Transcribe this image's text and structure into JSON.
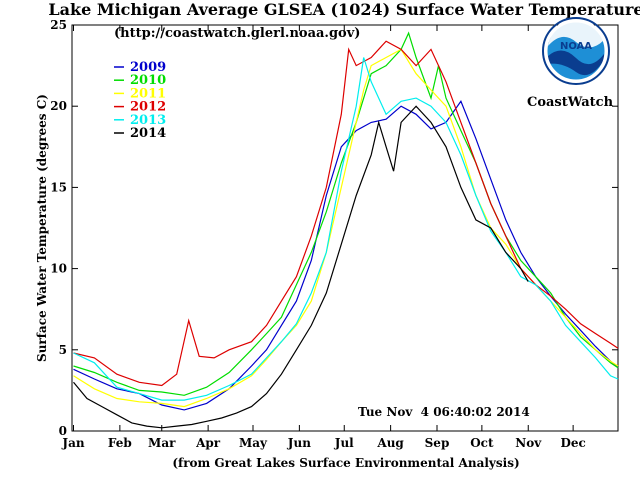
{
  "logo": {
    "text": "NOAA",
    "caption": "CoastWatch"
  },
  "chart_data": {
    "type": "line",
    "title": "Lake Michigan Average GLSEA (1024) Surface Water Temperature",
    "subtitle": "(http://coastwatch.glerl.noaa.gov)",
    "xlabel": "(from Great Lakes Surface Environmental Analysis)",
    "ylabel": "Surface Water Temperature (degrees C)",
    "timestamp": "Tue Nov  4 06:40:02 2014",
    "xlim": [
      0,
      365
    ],
    "ylim": [
      0,
      25
    ],
    "yticks": [
      0,
      5,
      10,
      15,
      20,
      25
    ],
    "months": [
      {
        "label": "Jan",
        "day": 1
      },
      {
        "label": "Feb",
        "day": 32
      },
      {
        "label": "Mar",
        "day": 60
      },
      {
        "label": "Apr",
        "day": 91
      },
      {
        "label": "May",
        "day": 121
      },
      {
        "label": "Jun",
        "day": 152
      },
      {
        "label": "Jul",
        "day": 182
      },
      {
        "label": "Aug",
        "day": 213
      },
      {
        "label": "Sep",
        "day": 244
      },
      {
        "label": "Oct",
        "day": 274
      },
      {
        "label": "Nov",
        "day": 305
      },
      {
        "label": "Dec",
        "day": 335
      }
    ],
    "series": [
      {
        "name": "2009",
        "color": "#0000cc",
        "x": [
          1,
          15,
          30,
          45,
          60,
          75,
          90,
          105,
          120,
          130,
          140,
          150,
          160,
          170,
          180,
          190,
          200,
          210,
          220,
          230,
          240,
          250,
          260,
          270,
          280,
          290,
          300,
          310,
          320,
          330,
          340,
          350,
          360,
          365
        ],
        "y": [
          3.8,
          3.2,
          2.6,
          2.3,
          1.6,
          1.3,
          1.7,
          2.6,
          4.0,
          5.0,
          6.5,
          8.0,
          10.5,
          14.5,
          17.5,
          18.5,
          19.0,
          19.2,
          20.0,
          19.5,
          18.6,
          19.0,
          20.3,
          18.0,
          15.5,
          13.0,
          11.0,
          9.5,
          8.3,
          7.2,
          6.2,
          5.2,
          4.3,
          3.9
        ]
      },
      {
        "name": "2010",
        "color": "#00dd00",
        "x": [
          1,
          15,
          30,
          45,
          60,
          75,
          90,
          105,
          120,
          130,
          140,
          150,
          160,
          170,
          180,
          190,
          200,
          210,
          220,
          225,
          230,
          240,
          245,
          250,
          260,
          270,
          280,
          290,
          300,
          310,
          320,
          330,
          340,
          350,
          360,
          365
        ],
        "y": [
          4.0,
          3.6,
          3.0,
          2.5,
          2.4,
          2.2,
          2.7,
          3.6,
          5.0,
          6.0,
          7.0,
          9.0,
          11.0,
          13.5,
          16.5,
          19.0,
          22.0,
          22.5,
          23.5,
          24.5,
          23.0,
          20.5,
          22.5,
          20.5,
          18.5,
          16.5,
          14.0,
          12.0,
          10.5,
          9.5,
          8.5,
          7.0,
          5.8,
          5.0,
          4.2,
          3.9
        ]
      },
      {
        "name": "2011",
        "color": "#ffff00",
        "x": [
          1,
          15,
          30,
          45,
          60,
          75,
          90,
          105,
          120,
          130,
          140,
          150,
          160,
          170,
          180,
          190,
          195,
          200,
          210,
          220,
          230,
          240,
          250,
          260,
          270,
          280,
          290,
          300,
          310,
          320,
          330,
          340,
          350,
          360,
          365
        ],
        "y": [
          3.4,
          2.6,
          2.0,
          1.8,
          1.7,
          1.5,
          2.0,
          2.6,
          3.4,
          4.4,
          5.5,
          6.5,
          8.0,
          11.0,
          15.0,
          19.0,
          21.0,
          22.5,
          23.0,
          23.5,
          22.0,
          21.0,
          20.0,
          17.5,
          14.5,
          12.5,
          11.5,
          10.0,
          9.0,
          8.0,
          7.0,
          6.0,
          5.0,
          4.3,
          4.0
        ]
      },
      {
        "name": "2012",
        "color": "#dd0000",
        "x": [
          1,
          15,
          30,
          45,
          60,
          70,
          78,
          85,
          95,
          105,
          120,
          130,
          140,
          150,
          160,
          170,
          180,
          185,
          190,
          200,
          210,
          220,
          230,
          240,
          250,
          260,
          270,
          280,
          290,
          300,
          310,
          320,
          330,
          340,
          350,
          360,
          365
        ],
        "y": [
          4.8,
          4.5,
          3.5,
          3.0,
          2.8,
          3.5,
          6.8,
          4.6,
          4.5,
          5.0,
          5.5,
          6.5,
          8.0,
          9.5,
          12.0,
          15.0,
          19.5,
          23.5,
          22.5,
          23.0,
          24.0,
          23.5,
          22.5,
          23.5,
          21.5,
          19.0,
          16.5,
          14.0,
          12.0,
          10.0,
          9.0,
          8.3,
          7.5,
          6.6,
          6.0,
          5.4,
          5.1
        ]
      },
      {
        "name": "2013",
        "color": "#00eeee",
        "x": [
          1,
          15,
          30,
          45,
          60,
          75,
          90,
          105,
          120,
          130,
          140,
          150,
          160,
          170,
          180,
          190,
          195,
          200,
          210,
          220,
          230,
          240,
          250,
          260,
          270,
          280,
          290,
          300,
          310,
          320,
          330,
          340,
          350,
          360,
          365
        ],
        "y": [
          4.8,
          4.2,
          2.7,
          2.3,
          1.9,
          1.9,
          2.2,
          2.8,
          3.5,
          4.5,
          5.5,
          6.6,
          8.5,
          11.0,
          16.0,
          20.0,
          23.0,
          21.5,
          19.5,
          20.3,
          20.5,
          20.0,
          19.0,
          17.0,
          14.5,
          12.3,
          11.0,
          9.5,
          9.0,
          8.0,
          6.5,
          5.5,
          4.5,
          3.4,
          3.2
        ]
      },
      {
        "name": "2014",
        "color": "#000000",
        "x": [
          1,
          10,
          20,
          30,
          40,
          50,
          60,
          70,
          80,
          90,
          100,
          110,
          120,
          130,
          140,
          150,
          160,
          170,
          180,
          190,
          200,
          205,
          210,
          215,
          220,
          230,
          240,
          250,
          260,
          270,
          280,
          290,
          300,
          305
        ],
        "y": [
          3.0,
          2.0,
          1.5,
          1.0,
          0.5,
          0.3,
          0.2,
          0.3,
          0.4,
          0.6,
          0.8,
          1.1,
          1.5,
          2.3,
          3.5,
          5.0,
          6.5,
          8.5,
          11.5,
          14.5,
          17.0,
          19.0,
          17.5,
          16.0,
          19.0,
          20.0,
          19.0,
          17.5,
          15.0,
          13.0,
          12.5,
          11.0,
          10.0,
          9.2
        ]
      }
    ]
  }
}
